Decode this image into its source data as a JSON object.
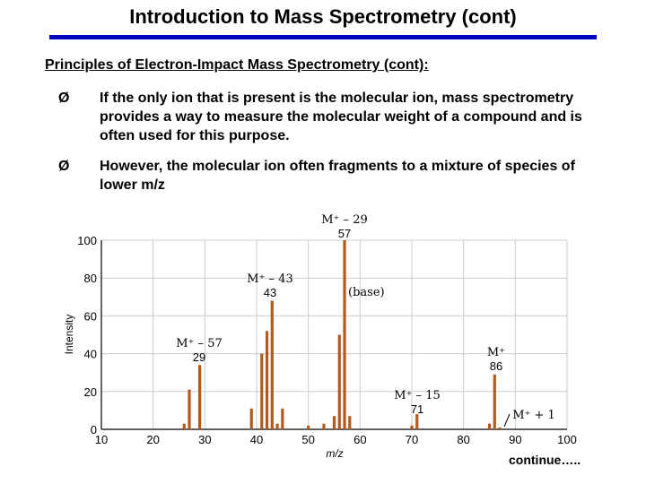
{
  "slide": {
    "title": "Introduction to Mass Spectrometry (cont)",
    "subtitle": "Principles of Electron-Impact Mass Spectrometry (cont):",
    "bullet_symbol": "Ø",
    "bullets": [
      "If the only ion that is present is the molecular ion, mass spectrometry provides a way to measure the molecular weight of a compound and is often used for this purpose.",
      "However, the molecular ion often fragments to a mixture of species of lower m/z"
    ],
    "footer": "continue….."
  },
  "colors": {
    "title_rule": "#0000c0",
    "bars": "#b55a1e",
    "grid": "#cccccc"
  },
  "chart_data": {
    "type": "bar",
    "xlabel": "m/z",
    "ylabel": "Intensity",
    "xlim": [
      10,
      100
    ],
    "ylim": [
      0,
      100
    ],
    "xticks": [
      10,
      20,
      30,
      40,
      50,
      60,
      70,
      80,
      90,
      100
    ],
    "yticks": [
      0,
      20,
      40,
      60,
      80,
      100
    ],
    "grid": true,
    "x": [
      26,
      27,
      29,
      39,
      41,
      42,
      43,
      44,
      45,
      50,
      53,
      55,
      56,
      57,
      58,
      70,
      71,
      85,
      86,
      87
    ],
    "values": [
      3,
      21,
      34,
      11,
      40,
      52,
      68,
      3,
      11,
      2,
      3,
      7,
      50,
      100,
      7,
      2,
      8,
      3,
      29,
      1
    ],
    "annotations": [
      {
        "label": "M⁺ – 29",
        "value_label": "57"
      },
      {
        "label": "M⁺ – 43",
        "value_label": "43"
      },
      {
        "label": "(base)"
      },
      {
        "label": "M⁺ – 57",
        "value_label": "29"
      },
      {
        "label": "M⁺",
        "value_label": "86"
      },
      {
        "label": "M⁺ – 15",
        "value_label": "71"
      },
      {
        "label": "M⁺ + 1"
      }
    ]
  }
}
